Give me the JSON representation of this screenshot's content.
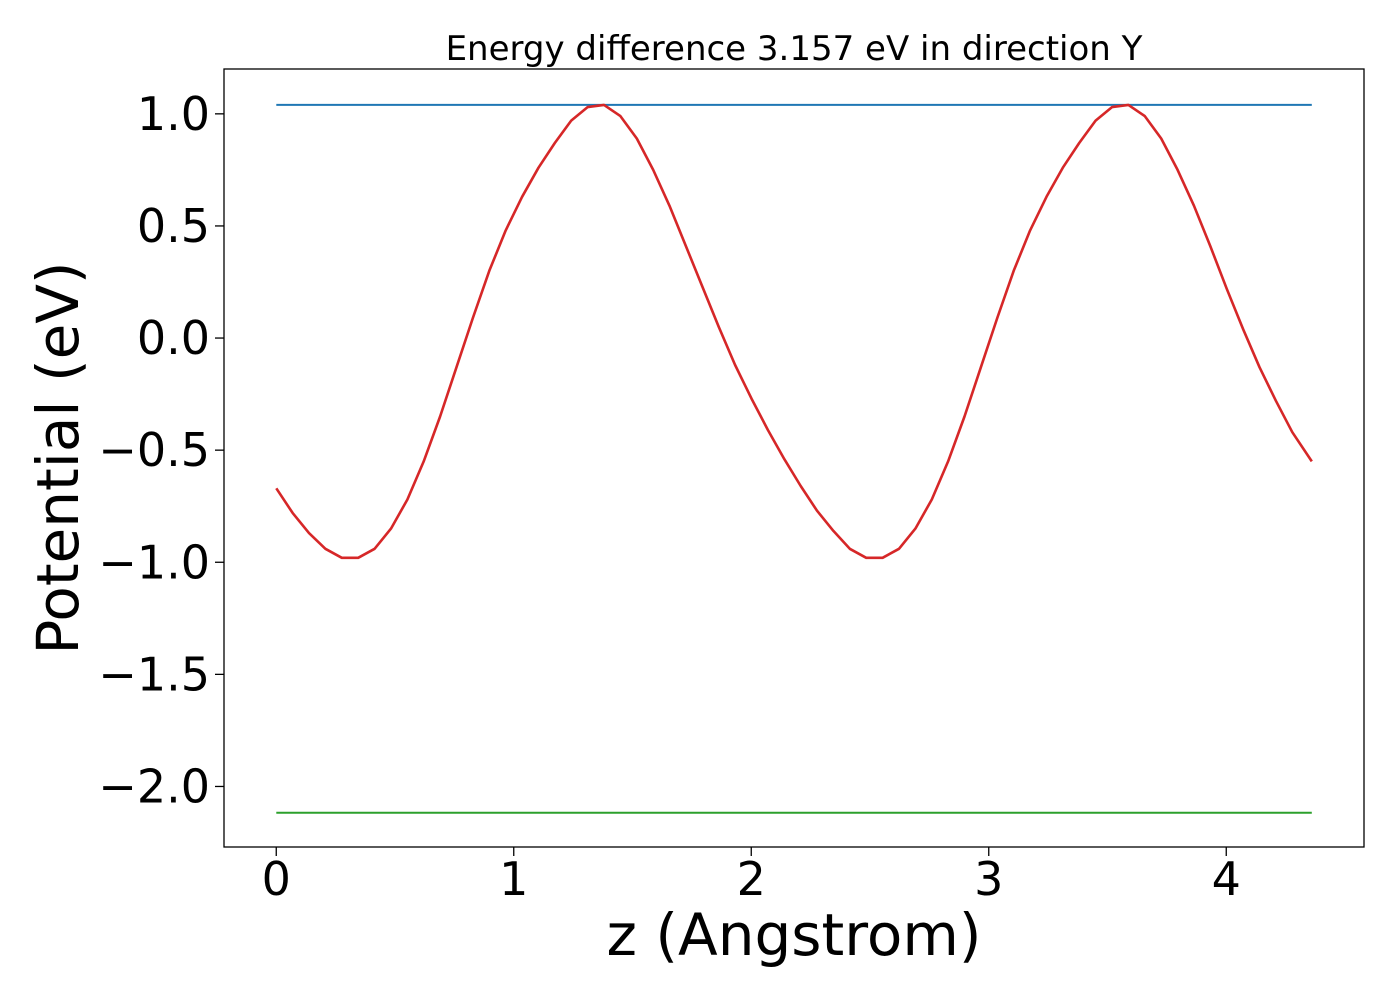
{
  "chart_data": {
    "type": "line",
    "title": "Energy difference 3.157 eV in direction Y",
    "xlabel": "z (Angstrom)",
    "ylabel": "Potential (eV)",
    "xlim": [
      -0.22,
      4.58
    ],
    "ylim": [
      -2.27,
      1.2
    ],
    "x_ticks": [
      0,
      1,
      2,
      3,
      4
    ],
    "x_tick_labels": [
      "0",
      "1",
      "2",
      "3",
      "4"
    ],
    "y_ticks": [
      1.0,
      0.5,
      0.0,
      -0.5,
      -1.0,
      -1.5,
      -2.0
    ],
    "y_tick_labels": [
      "1.0",
      "0.5",
      "0.0",
      "−0.5",
      "−1.0",
      "−1.5",
      "−2.0"
    ],
    "grid": false,
    "colors": {
      "potential": "#d62728",
      "upper_level": "#1f77b4",
      "lower_level": "#2ca02c"
    },
    "series": [
      {
        "key": "potential",
        "x": [
          0.0,
          0.069,
          0.138,
          0.207,
          0.276,
          0.345,
          0.414,
          0.483,
          0.552,
          0.621,
          0.69,
          0.759,
          0.828,
          0.897,
          0.966,
          1.035,
          1.104,
          1.173,
          1.242,
          1.311,
          1.38,
          1.449,
          1.518,
          1.587,
          1.656,
          1.725,
          1.794,
          1.863,
          1.932,
          2.001,
          2.07,
          2.139,
          2.208,
          2.277,
          2.346,
          2.415,
          2.484,
          2.553,
          2.622,
          2.691,
          2.76,
          2.829,
          2.898,
          2.967,
          3.036,
          3.105,
          3.174,
          3.243,
          3.312,
          3.381,
          3.45,
          3.519,
          3.588,
          3.657,
          3.726,
          3.795,
          3.864,
          3.933,
          4.002,
          4.071,
          4.14,
          4.209,
          4.278,
          4.36
        ],
        "y": [
          -0.67,
          -0.78,
          -0.87,
          -0.94,
          -0.98,
          -0.98,
          -0.94,
          -0.85,
          -0.72,
          -0.55,
          -0.35,
          -0.13,
          0.09,
          0.3,
          0.48,
          0.63,
          0.76,
          0.87,
          0.97,
          1.03,
          1.04,
          0.99,
          0.89,
          0.75,
          0.59,
          0.41,
          0.23,
          0.05,
          -0.12,
          -0.27,
          -0.41,
          -0.54,
          -0.66,
          -0.77,
          -0.86,
          -0.94,
          -0.98,
          -0.98,
          -0.94,
          -0.85,
          -0.72,
          -0.55,
          -0.35,
          -0.13,
          0.09,
          0.3,
          0.48,
          0.63,
          0.76,
          0.87,
          0.97,
          1.03,
          1.04,
          0.99,
          0.89,
          0.75,
          0.59,
          0.41,
          0.22,
          0.04,
          -0.13,
          -0.28,
          -0.42,
          -0.55
        ]
      },
      {
        "key": "upper_level",
        "x": [
          0.0,
          4.36
        ],
        "y": [
          1.04,
          1.04
        ]
      },
      {
        "key": "lower_level",
        "x": [
          0.0,
          4.36
        ],
        "y": [
          -2.117,
          -2.117
        ]
      }
    ]
  }
}
